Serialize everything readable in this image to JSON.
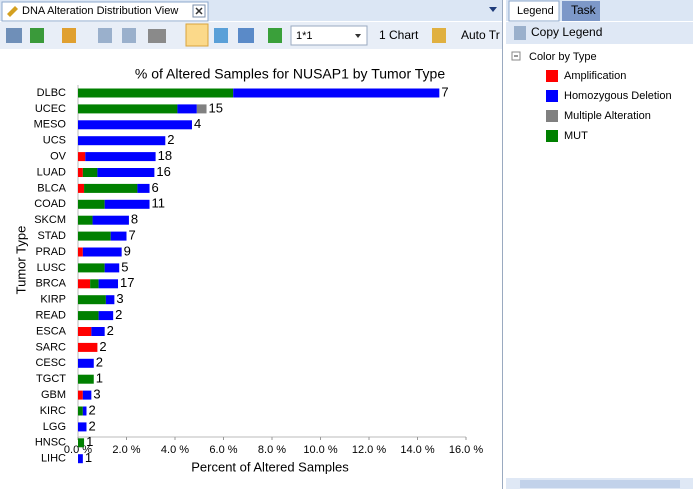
{
  "ui": {
    "view_tab": "DNA Alteration Distribution View",
    "combo": "1*1",
    "chart_button": "1 Chart",
    "auto_button": "Auto Tr",
    "legend_tab": "Legend",
    "task_tab": "Task",
    "copy_legend": "Copy Legend",
    "legend_group": "Color by Type"
  },
  "chart_data": {
    "type": "hbar-stacked",
    "title": "% of Altered Samples for NUSAP1 by Tumor Type",
    "x_label": "Percent of Altered Samples",
    "y_label": "Tumor Type",
    "categories": [
      "DLBC",
      "UCEC",
      "MESO",
      "UCS",
      "OV",
      "LUAD",
      "BLCA",
      "COAD",
      "SKCM",
      "STAD",
      "PRAD",
      "LUSC",
      "BRCA",
      "KIRP",
      "READ",
      "ESCA",
      "SARC",
      "CESC",
      "TGCT",
      "GBM",
      "KIRC",
      "LGG",
      "HNSC",
      "LIHC"
    ],
    "series": [
      {
        "name": "Amplification",
        "color": "#ff0000",
        "values": [
          0,
          0,
          0,
          0,
          0.3,
          0.2,
          0.25,
          0,
          0,
          0,
          0.2,
          0,
          0.5,
          0,
          0,
          0.55,
          0.8,
          0,
          0,
          0.2,
          0,
          0,
          0,
          0
        ]
      },
      {
        "name": "Homozygous Deletion",
        "color": "#0000ff",
        "values": [
          8.5,
          0.8,
          4.7,
          3.6,
          2.9,
          2.35,
          0.5,
          1.85,
          1.5,
          0.65,
          1.6,
          0.6,
          0.8,
          0.35,
          0.6,
          0.55,
          0,
          0.65,
          0,
          0.35,
          0.15,
          0.35,
          0,
          0.2
        ]
      },
      {
        "name": "Multiple Alteration",
        "color": "#808080",
        "values": [
          0,
          0.4,
          0,
          0,
          0,
          0,
          0,
          0,
          0,
          0,
          0,
          0,
          0,
          0,
          0,
          0,
          0,
          0,
          0,
          0,
          0,
          0,
          0,
          0
        ]
      },
      {
        "name": "MUT",
        "color": "#008000",
        "values": [
          6.4,
          4.1,
          0,
          0,
          0,
          0.6,
          2.2,
          1.1,
          0.6,
          1.35,
          0,
          1.1,
          0.35,
          1.15,
          0.85,
          0,
          0,
          0,
          0.65,
          0,
          0.2,
          0,
          0.25,
          0
        ]
      }
    ],
    "bar_labels": [
      7,
      15,
      4,
      2,
      18,
      16,
      6,
      11,
      8,
      7,
      9,
      5,
      17,
      3,
      2,
      2,
      2,
      2,
      1,
      3,
      2,
      2,
      1,
      1
    ],
    "xlim": [
      0,
      16
    ],
    "xticks": [
      {
        "value": 0,
        "label": "0.0 %"
      },
      {
        "value": 2,
        "label": "2.0 %"
      },
      {
        "value": 4,
        "label": "4.0 %"
      },
      {
        "value": 6,
        "label": "6.0 %"
      },
      {
        "value": 8,
        "label": "8.0 %"
      },
      {
        "value": 10,
        "label": "10.0 %"
      },
      {
        "value": 12,
        "label": "12.0 %"
      },
      {
        "value": 14,
        "label": "14.0 %"
      },
      {
        "value": 16,
        "label": "16.0 %"
      }
    ]
  }
}
